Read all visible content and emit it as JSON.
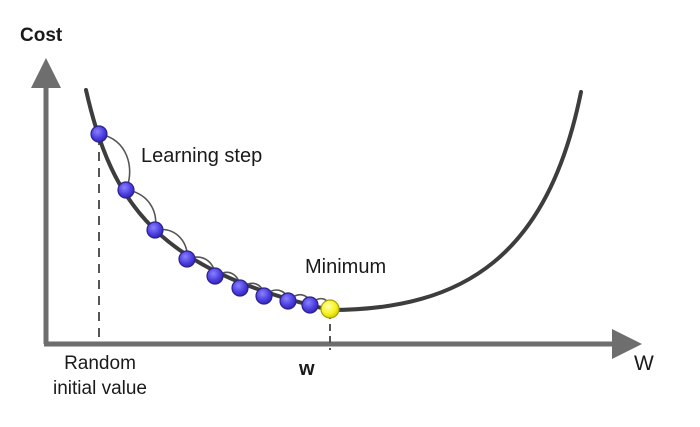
{
  "axes": {
    "y_title": "Cost",
    "x_title": "W"
  },
  "labels": {
    "start_line1": "Random",
    "start_line2": "initial value",
    "min_x": "w",
    "learning_step": "Learning step",
    "minimum": "Minimum"
  },
  "colors": {
    "curve": "#3d3d3d",
    "axis": "#6e6e6e",
    "step_point": "#4d3fe0",
    "minimum_point": "#f7f321",
    "text": "#1a1a1a"
  },
  "step_count": 9
}
